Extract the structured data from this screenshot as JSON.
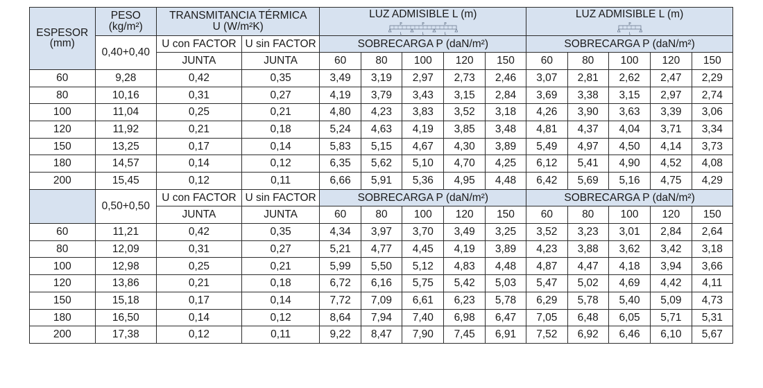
{
  "headers": {
    "espesor": [
      "ESPESOR",
      "(mm)"
    ],
    "peso": [
      "PESO",
      "(kg/m²)"
    ],
    "transmitancia": [
      "TRANSMITANCIA TÉRMICA",
      "U (W/m²K)"
    ],
    "luz_title": "LUZ ADMISIBLE L (m)",
    "beam_labels": {
      "p": "P",
      "l": "L"
    },
    "u_con": [
      "U con FACTOR",
      "JUNTA"
    ],
    "u_sin": [
      "U sin FACTOR",
      "JUNTA"
    ],
    "sobrecarga": "SOBRECARGA P (daN/m²)",
    "loads": [
      "60",
      "80",
      "100",
      "120",
      "150"
    ]
  },
  "sections": [
    {
      "peso_label": "0,40+0,40",
      "rows": [
        {
          "espesor": "60",
          "peso": "9,28",
          "u_con": "0,42",
          "u_sin": "0,35",
          "luz_multi": [
            "3,49",
            "3,19",
            "2,97",
            "2,73",
            "2,46"
          ],
          "luz_single": [
            "3,07",
            "2,81",
            "2,62",
            "2,47",
            "2,29"
          ]
        },
        {
          "espesor": "80",
          "peso": "10,16",
          "u_con": "0,31",
          "u_sin": "0,27",
          "luz_multi": [
            "4,19",
            "3,79",
            "3,43",
            "3,15",
            "2,84"
          ],
          "luz_single": [
            "3,69",
            "3,38",
            "3,15",
            "2,97",
            "2,74"
          ]
        },
        {
          "espesor": "100",
          "peso": "11,04",
          "u_con": "0,25",
          "u_sin": "0,21",
          "luz_multi": [
            "4,80",
            "4,23",
            "3,83",
            "3,52",
            "3,18"
          ],
          "luz_single": [
            "4,26",
            "3,90",
            "3,63",
            "3,39",
            "3,06"
          ]
        },
        {
          "espesor": "120",
          "peso": "11,92",
          "u_con": "0,21",
          "u_sin": "0,18",
          "luz_multi": [
            "5,24",
            "4,63",
            "4,19",
            "3,85",
            "3,48"
          ],
          "luz_single": [
            "4,81",
            "4,37",
            "4,04",
            "3,71",
            "3,34"
          ]
        },
        {
          "espesor": "150",
          "peso": "13,25",
          "u_con": "0,17",
          "u_sin": "0,14",
          "luz_multi": [
            "5,83",
            "5,15",
            "4,67",
            "4,30",
            "3,89"
          ],
          "luz_single": [
            "5,49",
            "4,97",
            "4,50",
            "4,14",
            "3,73"
          ]
        },
        {
          "espesor": "180",
          "peso": "14,57",
          "u_con": "0,14",
          "u_sin": "0,12",
          "luz_multi": [
            "6,35",
            "5,62",
            "5,10",
            "4,70",
            "4,25"
          ],
          "luz_single": [
            "6,12",
            "5,41",
            "4,90",
            "4,52",
            "4,08"
          ]
        },
        {
          "espesor": "200",
          "peso": "15,45",
          "u_con": "0,12",
          "u_sin": "0,11",
          "luz_multi": [
            "6,66",
            "5,91",
            "5,36",
            "4,95",
            "4,48"
          ],
          "luz_single": [
            "6,42",
            "5,69",
            "5,16",
            "4,75",
            "4,29"
          ]
        }
      ]
    },
    {
      "peso_label": "0,50+0,50",
      "rows": [
        {
          "espesor": "60",
          "peso": "11,21",
          "u_con": "0,42",
          "u_sin": "0,35",
          "luz_multi": [
            "4,34",
            "3,97",
            "3,70",
            "3,49",
            "3,25"
          ],
          "luz_single": [
            "3,52",
            "3,23",
            "3,01",
            "2,84",
            "2,64"
          ]
        },
        {
          "espesor": "80",
          "peso": "12,09",
          "u_con": "0,31",
          "u_sin": "0,27",
          "luz_multi": [
            "5,21",
            "4,77",
            "4,45",
            "4,19",
            "3,89"
          ],
          "luz_single": [
            "4,23",
            "3,88",
            "3,62",
            "3,42",
            "3,18"
          ]
        },
        {
          "espesor": "100",
          "peso": "12,98",
          "u_con": "0,25",
          "u_sin": "0,21",
          "luz_multi": [
            "5,99",
            "5,50",
            "5,12",
            "4,83",
            "4,48"
          ],
          "luz_single": [
            "4,87",
            "4,47",
            "4,18",
            "3,94",
            "3,66"
          ]
        },
        {
          "espesor": "120",
          "peso": "13,86",
          "u_con": "0,21",
          "u_sin": "0,18",
          "luz_multi": [
            "6,72",
            "6,16",
            "5,75",
            "5,42",
            "5,03"
          ],
          "luz_single": [
            "5,47",
            "5,02",
            "4,69",
            "4,42",
            "4,11"
          ]
        },
        {
          "espesor": "150",
          "peso": "15,18",
          "u_con": "0,17",
          "u_sin": "0,14",
          "luz_multi": [
            "7,72",
            "7,09",
            "6,61",
            "6,23",
            "5,78"
          ],
          "luz_single": [
            "6,29",
            "5,78",
            "5,40",
            "5,09",
            "4,73"
          ]
        },
        {
          "espesor": "180",
          "peso": "16,50",
          "u_con": "0,14",
          "u_sin": "0,12",
          "luz_multi": [
            "8,64",
            "7,94",
            "7,40",
            "6,98",
            "6,47"
          ],
          "luz_single": [
            "7,05",
            "6,48",
            "6,05",
            "5,71",
            "5,31"
          ]
        },
        {
          "espesor": "200",
          "peso": "17,38",
          "u_con": "0,12",
          "u_sin": "0,11",
          "luz_multi": [
            "9,22",
            "8,47",
            "7,90",
            "7,45",
            "6,91"
          ],
          "luz_single": [
            "7,52",
            "6,92",
            "6,46",
            "6,10",
            "5,67"
          ]
        }
      ]
    }
  ],
  "colors": {
    "header_bg": "#d7e2f0",
    "border": "#2b2b2b",
    "text": "#1a1a1a"
  }
}
